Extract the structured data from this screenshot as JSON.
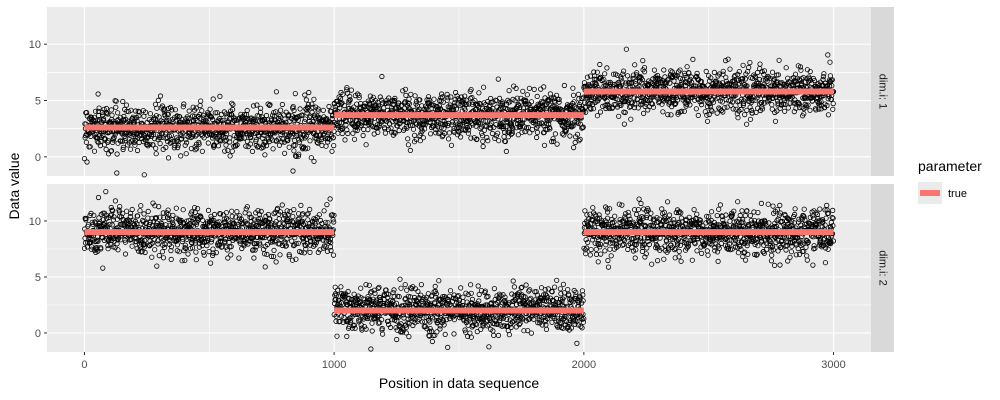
{
  "chart_data": {
    "type": "scatter",
    "xlabel": "Position in data sequence",
    "ylabel": "Data value",
    "xlim": [
      -150,
      3150
    ],
    "x_ticks": [
      0,
      1000,
      2000,
      3000
    ],
    "y_ticks": [
      0,
      5,
      10
    ],
    "grid": true,
    "legend": {
      "title": "parameter",
      "placement": "right",
      "entries": [
        {
          "label": "true",
          "color": "#F8766D"
        }
      ]
    },
    "colors": {
      "panel_background": "#EBEBEB",
      "strip_background": "#D9D9D9",
      "grid_line": "#FFFFFF",
      "point_stroke": "#000000",
      "true_line": "#F8766D"
    },
    "panels": [
      {
        "strip_label": "dim.i: 1",
        "ylim": [
          -1.7,
          13.3
        ],
        "points": {
          "n": 3000,
          "segments": [
            {
              "x_start": 0,
              "x_end": 1000,
              "mean": 2.6,
              "sd": 1.0
            },
            {
              "x_start": 1000,
              "x_end": 2000,
              "mean": 3.7,
              "sd": 1.0
            },
            {
              "x_start": 2000,
              "x_end": 3000,
              "mean": 5.8,
              "sd": 1.0
            }
          ]
        },
        "true_segments": [
          {
            "x_start": 0,
            "x_end": 1000,
            "y": 2.6
          },
          {
            "x_start": 1000,
            "x_end": 2000,
            "y": 3.7
          },
          {
            "x_start": 2000,
            "x_end": 3000,
            "y": 5.8
          }
        ]
      },
      {
        "strip_label": "dim.i: 2",
        "ylim": [
          -1.7,
          13.3
        ],
        "points": {
          "n": 3000,
          "segments": [
            {
              "x_start": 0,
              "x_end": 1000,
              "mean": 9.0,
              "sd": 1.0
            },
            {
              "x_start": 1000,
              "x_end": 2000,
              "mean": 2.0,
              "sd": 1.0
            },
            {
              "x_start": 2000,
              "x_end": 3000,
              "mean": 9.0,
              "sd": 1.0
            }
          ]
        },
        "true_segments": [
          {
            "x_start": 0,
            "x_end": 1000,
            "y": 9.0
          },
          {
            "x_start": 1000,
            "x_end": 2000,
            "y": 2.0
          },
          {
            "x_start": 2000,
            "x_end": 3000,
            "y": 9.0
          }
        ]
      }
    ]
  }
}
